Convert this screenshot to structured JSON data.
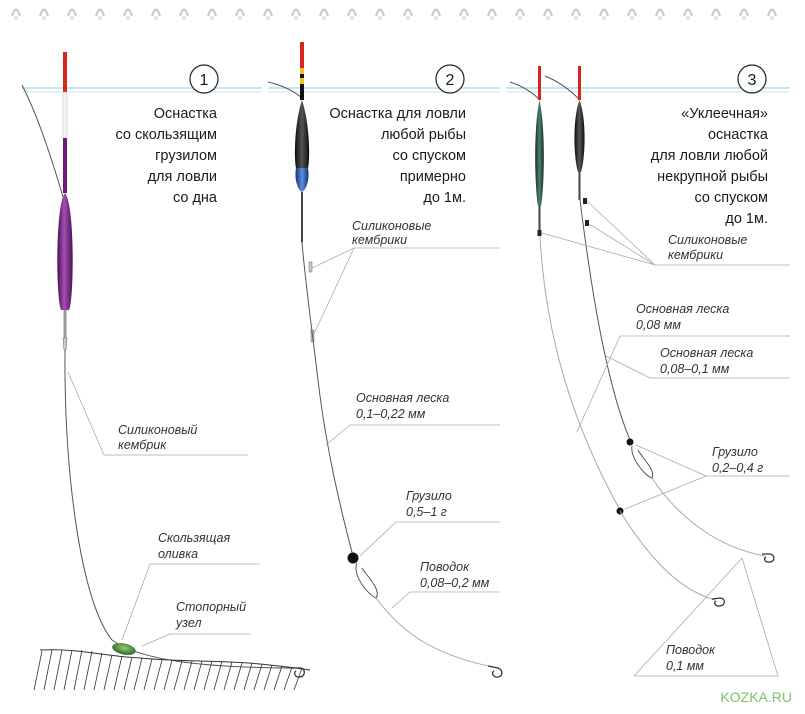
{
  "panels": [
    {
      "number": "1",
      "title_lines": [
        "Оснастка",
        "со скользящим",
        "грузилом",
        "для ловли",
        "со дна"
      ],
      "labels": {
        "kembrik": [
          "Силиконовый",
          "кембрик"
        ],
        "oliva": [
          "Скользящая",
          "оливка"
        ],
        "uzel": [
          "Стопорный",
          "узел"
        ]
      }
    },
    {
      "number": "2",
      "title_lines": [
        "Оснастка для ловли",
        "любой рыбы",
        "со спуском",
        "примерно",
        "до 1м."
      ],
      "labels": {
        "kembriki": [
          "Силиконовые",
          "кембрики"
        ],
        "leska": [
          "Основная леска",
          "0,1–0,22 мм"
        ],
        "gruzilo": [
          "Грузило",
          "0,5–1 г"
        ],
        "povodok": [
          "Поводок",
          "0,08–0,2 мм"
        ]
      }
    },
    {
      "number": "3",
      "title_lines": [
        "«Уклеечная»",
        "оснастка",
        "для ловли любой",
        "некрупной рыбы",
        "со спуском",
        "до 1м."
      ],
      "labels": {
        "kembriki": [
          "Силиконовые",
          "кембрики"
        ],
        "leska1": [
          "Основная леска",
          "0,08 мм"
        ],
        "leska2": [
          "Основная леска",
          "0,08–0,1 мм"
        ],
        "gruzilo": [
          "Грузило",
          "0,2–0,4 г"
        ],
        "povodok": [
          "Поводок",
          "0,1 мм"
        ]
      }
    }
  ],
  "watermark": "KOZKA.RU",
  "colors": {
    "water": "#9fd4ea",
    "line": "#555555",
    "leader": "#a8a8a8",
    "float_red": "#d9261c",
    "float_purple": "#6b1e77",
    "float_blue": "#2d5fb0",
    "float_green": "#2f5b52",
    "sinker": "#3c7a32"
  }
}
